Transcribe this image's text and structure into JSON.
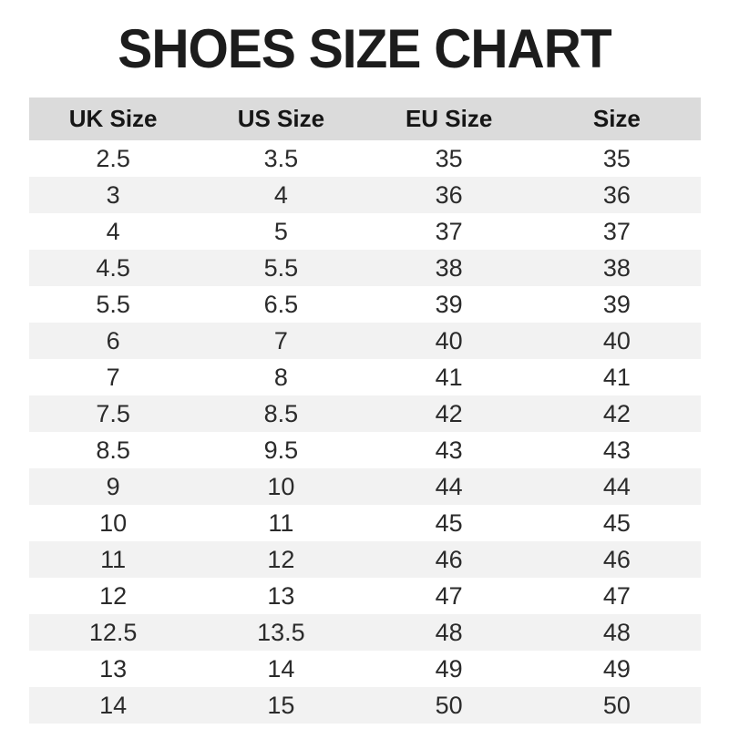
{
  "title": "SHOES SIZE CHART",
  "colors": {
    "header_bg": "#dbdbdb",
    "stripe_bg": "#f2f2f2",
    "text": "#2b2b2b",
    "title": "#1c1c1c",
    "background": "#ffffff"
  },
  "chart_data": {
    "type": "table",
    "title": "SHOES SIZE CHART",
    "columns": [
      "UK Size",
      "US Size",
      "EU Size",
      "Size"
    ],
    "rows": [
      [
        "2.5",
        "3.5",
        "35",
        "35"
      ],
      [
        "3",
        "4",
        "36",
        "36"
      ],
      [
        "4",
        "5",
        "37",
        "37"
      ],
      [
        "4.5",
        "5.5",
        "38",
        "38"
      ],
      [
        "5.5",
        "6.5",
        "39",
        "39"
      ],
      [
        "6",
        "7",
        "40",
        "40"
      ],
      [
        "7",
        "8",
        "41",
        "41"
      ],
      [
        "7.5",
        "8.5",
        "42",
        "42"
      ],
      [
        "8.5",
        "9.5",
        "43",
        "43"
      ],
      [
        "9",
        "10",
        "44",
        "44"
      ],
      [
        "10",
        "11",
        "45",
        "45"
      ],
      [
        "11",
        "12",
        "46",
        "46"
      ],
      [
        "12",
        "13",
        "47",
        "47"
      ],
      [
        "12.5",
        "13.5",
        "48",
        "48"
      ],
      [
        "13",
        "14",
        "49",
        "49"
      ],
      [
        "14",
        "15",
        "50",
        "50"
      ]
    ],
    "layout": {
      "zebra_striping": true,
      "first_data_row_background": "white",
      "column_alignment": "center"
    }
  }
}
